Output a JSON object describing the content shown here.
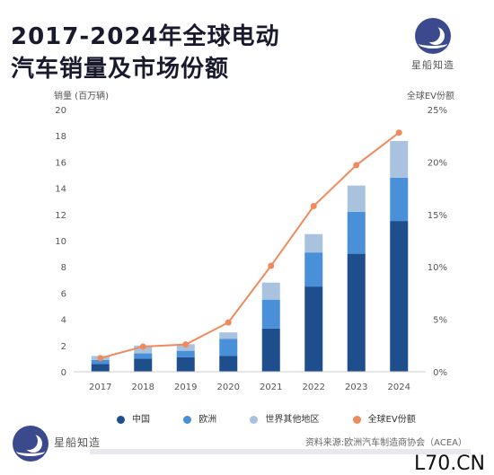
{
  "title_line1": "2017-2024年全球电动",
  "title_line2": "汽车销量及市场份额",
  "brand": "星船知造",
  "left_axis_title": "销量 (百万辆)",
  "right_axis_title": "全球EV份额",
  "source": "资料来源:欧洲汽车制造商协会（ACEA）",
  "site_mark": "L70.CN",
  "colors": {
    "china": "#1f4e8c",
    "europe": "#4a90d9",
    "other": "#a9c3de",
    "share": "#f08a5d"
  },
  "chart_data": {
    "type": "bar",
    "stacked": true,
    "categories": [
      "2017",
      "2018",
      "2019",
      "2020",
      "2021",
      "2022",
      "2023",
      "2024"
    ],
    "series": [
      {
        "name": "中国",
        "values": [
          0.6,
          1.0,
          1.1,
          1.2,
          3.3,
          6.5,
          9.0,
          11.5
        ]
      },
      {
        "name": "欧洲",
        "values": [
          0.3,
          0.4,
          0.5,
          1.3,
          2.2,
          2.6,
          3.2,
          3.3
        ]
      },
      {
        "name": "世界其他地区",
        "values": [
          0.3,
          0.6,
          0.5,
          0.5,
          1.3,
          1.4,
          2.0,
          2.8
        ]
      }
    ],
    "line_series": {
      "name": "全球EV份额",
      "values": [
        1.3,
        2.4,
        2.6,
        4.7,
        10.1,
        15.8,
        19.7,
        22.8
      ]
    },
    "ylim": [
      0,
      20
    ],
    "yticks": [
      "0",
      "2",
      "4",
      "6",
      "8",
      "10",
      "12",
      "14",
      "16",
      "18",
      "20"
    ],
    "y2lim": [
      0,
      25
    ],
    "y2ticks": [
      "0%",
      "5%",
      "10%",
      "15%",
      "20%",
      "25%"
    ],
    "legend_position": "bottom",
    "grid": false
  }
}
